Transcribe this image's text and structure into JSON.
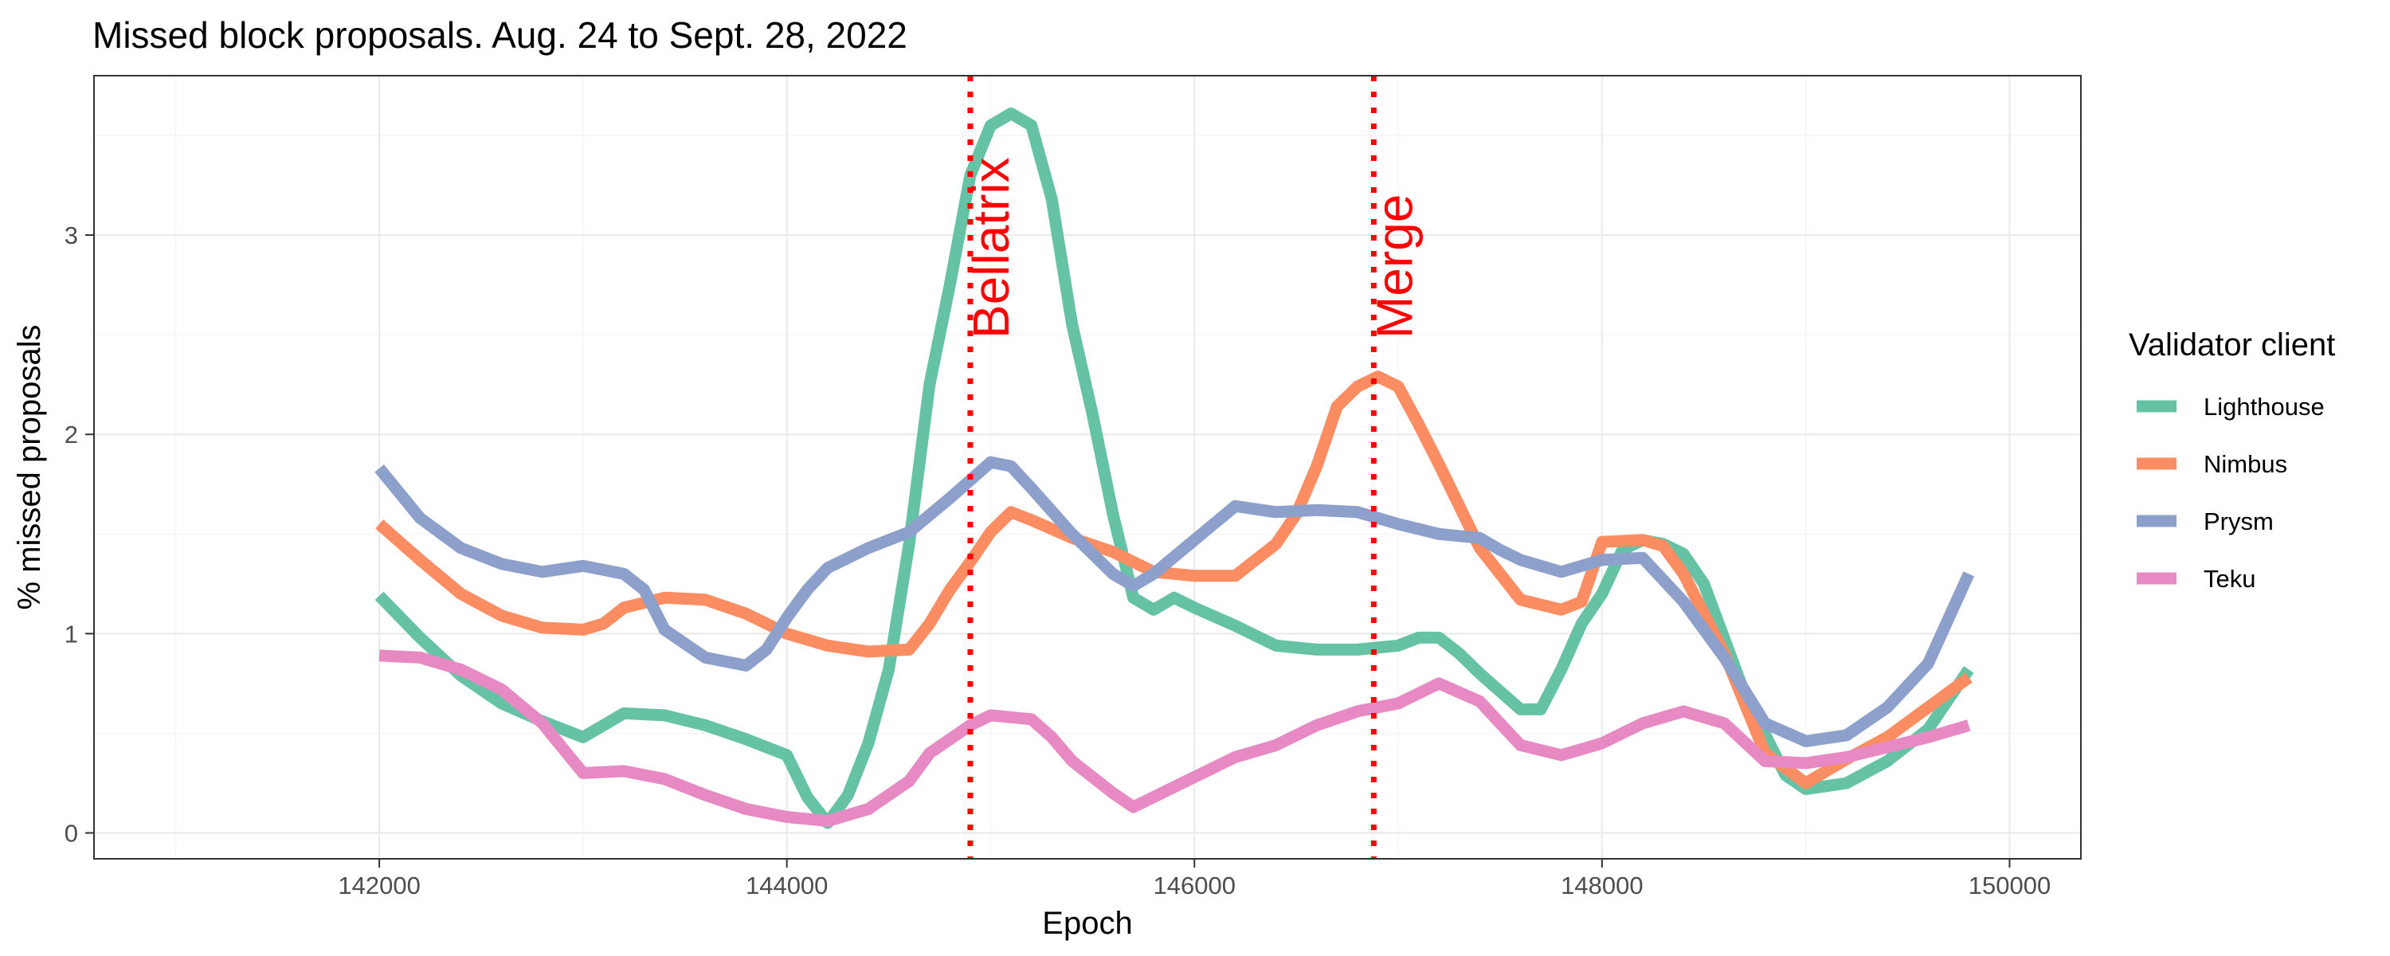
{
  "chart_data": {
    "type": "line",
    "title": "Missed block proposals. Aug. 24 to Sept. 28, 2022",
    "xlabel": "Epoch",
    "ylabel": "% missed proposals",
    "xlim": [
      140600,
      150350
    ],
    "ylim": [
      -0.13,
      3.8
    ],
    "x_ticks": [
      142000,
      144000,
      146000,
      148000,
      150000
    ],
    "y_ticks": [
      0,
      1,
      2,
      3
    ],
    "grid": true,
    "legend": {
      "title": "Validator client",
      "position": "right"
    },
    "vlines": [
      {
        "x": 144900,
        "label": "Bellatrix",
        "color": "#ff0000"
      },
      {
        "x": 146880,
        "label": "Merge",
        "color": "#ff0000"
      }
    ],
    "series": [
      {
        "name": "Lighthouse",
        "color": "#66c2a5",
        "points": [
          [
            142000,
            1.19
          ],
          [
            142200,
            0.98
          ],
          [
            142400,
            0.79
          ],
          [
            142600,
            0.65
          ],
          [
            142800,
            0.56
          ],
          [
            143000,
            0.48
          ],
          [
            143200,
            0.6
          ],
          [
            143400,
            0.59
          ],
          [
            143600,
            0.54
          ],
          [
            143800,
            0.47
          ],
          [
            144000,
            0.39
          ],
          [
            144100,
            0.18
          ],
          [
            144200,
            0.05
          ],
          [
            144300,
            0.19
          ],
          [
            144400,
            0.45
          ],
          [
            144500,
            0.82
          ],
          [
            144600,
            1.45
          ],
          [
            144700,
            2.25
          ],
          [
            144800,
            2.75
          ],
          [
            144900,
            3.3
          ],
          [
            145000,
            3.55
          ],
          [
            145100,
            3.61
          ],
          [
            145200,
            3.55
          ],
          [
            145300,
            3.18
          ],
          [
            145400,
            2.55
          ],
          [
            145500,
            2.1
          ],
          [
            145600,
            1.6
          ],
          [
            145700,
            1.18
          ],
          [
            145800,
            1.12
          ],
          [
            145900,
            1.18
          ],
          [
            146000,
            1.13
          ],
          [
            146200,
            1.04
          ],
          [
            146400,
            0.94
          ],
          [
            146600,
            0.92
          ],
          [
            146800,
            0.92
          ],
          [
            147000,
            0.94
          ],
          [
            147100,
            0.98
          ],
          [
            147200,
            0.98
          ],
          [
            147300,
            0.9
          ],
          [
            147400,
            0.8
          ],
          [
            147600,
            0.62
          ],
          [
            147700,
            0.62
          ],
          [
            147800,
            0.82
          ],
          [
            147900,
            1.05
          ],
          [
            148000,
            1.2
          ],
          [
            148100,
            1.42
          ],
          [
            148200,
            1.47
          ],
          [
            148300,
            1.45
          ],
          [
            148400,
            1.4
          ],
          [
            148500,
            1.25
          ],
          [
            148700,
            0.7
          ],
          [
            148900,
            0.29
          ],
          [
            149000,
            0.22
          ],
          [
            149200,
            0.25
          ],
          [
            149400,
            0.36
          ],
          [
            149600,
            0.52
          ],
          [
            149800,
            0.82
          ]
        ]
      },
      {
        "name": "Nimbus",
        "color": "#fc8d62",
        "points": [
          [
            142000,
            1.55
          ],
          [
            142200,
            1.37
          ],
          [
            142400,
            1.2
          ],
          [
            142600,
            1.09
          ],
          [
            142800,
            1.03
          ],
          [
            143000,
            1.02
          ],
          [
            143100,
            1.05
          ],
          [
            143200,
            1.13
          ],
          [
            143400,
            1.18
          ],
          [
            143600,
            1.17
          ],
          [
            143800,
            1.1
          ],
          [
            144000,
            1.0
          ],
          [
            144200,
            0.94
          ],
          [
            144400,
            0.91
          ],
          [
            144600,
            0.92
          ],
          [
            144700,
            1.05
          ],
          [
            144800,
            1.22
          ],
          [
            144900,
            1.36
          ],
          [
            145000,
            1.51
          ],
          [
            145100,
            1.61
          ],
          [
            145200,
            1.57
          ],
          [
            145400,
            1.48
          ],
          [
            145600,
            1.41
          ],
          [
            145800,
            1.31
          ],
          [
            146000,
            1.29
          ],
          [
            146200,
            1.29
          ],
          [
            146400,
            1.45
          ],
          [
            146500,
            1.6
          ],
          [
            146600,
            1.84
          ],
          [
            146700,
            2.14
          ],
          [
            146800,
            2.24
          ],
          [
            146900,
            2.29
          ],
          [
            147000,
            2.24
          ],
          [
            147100,
            2.05
          ],
          [
            147200,
            1.85
          ],
          [
            147400,
            1.43
          ],
          [
            147600,
            1.17
          ],
          [
            147800,
            1.12
          ],
          [
            147900,
            1.16
          ],
          [
            148000,
            1.46
          ],
          [
            148200,
            1.47
          ],
          [
            148300,
            1.44
          ],
          [
            148400,
            1.3
          ],
          [
            148600,
            0.9
          ],
          [
            148800,
            0.4
          ],
          [
            149000,
            0.25
          ],
          [
            149200,
            0.37
          ],
          [
            149400,
            0.48
          ],
          [
            149600,
            0.63
          ],
          [
            149800,
            0.78
          ]
        ]
      },
      {
        "name": "Prysm",
        "color": "#8da0cb",
        "points": [
          [
            142000,
            1.83
          ],
          [
            142200,
            1.58
          ],
          [
            142400,
            1.43
          ],
          [
            142600,
            1.35
          ],
          [
            142800,
            1.31
          ],
          [
            143000,
            1.34
          ],
          [
            143200,
            1.3
          ],
          [
            143300,
            1.22
          ],
          [
            143400,
            1.02
          ],
          [
            143600,
            0.88
          ],
          [
            143800,
            0.84
          ],
          [
            143900,
            0.92
          ],
          [
            144000,
            1.08
          ],
          [
            144100,
            1.22
          ],
          [
            144200,
            1.33
          ],
          [
            144400,
            1.43
          ],
          [
            144600,
            1.51
          ],
          [
            144800,
            1.68
          ],
          [
            145000,
            1.86
          ],
          [
            145100,
            1.84
          ],
          [
            145200,
            1.73
          ],
          [
            145400,
            1.5
          ],
          [
            145600,
            1.3
          ],
          [
            145700,
            1.24
          ],
          [
            145800,
            1.3
          ],
          [
            146000,
            1.47
          ],
          [
            146200,
            1.64
          ],
          [
            146400,
            1.61
          ],
          [
            146600,
            1.62
          ],
          [
            146800,
            1.61
          ],
          [
            147000,
            1.55
          ],
          [
            147200,
            1.5
          ],
          [
            147400,
            1.48
          ],
          [
            147500,
            1.42
          ],
          [
            147600,
            1.37
          ],
          [
            147800,
            1.31
          ],
          [
            148000,
            1.37
          ],
          [
            148200,
            1.38
          ],
          [
            148400,
            1.16
          ],
          [
            148600,
            0.88
          ],
          [
            148800,
            0.55
          ],
          [
            149000,
            0.46
          ],
          [
            149200,
            0.49
          ],
          [
            149400,
            0.63
          ],
          [
            149600,
            0.85
          ],
          [
            149800,
            1.3
          ]
        ]
      },
      {
        "name": "Teku",
        "color": "#e78ac3",
        "points": [
          [
            142000,
            0.89
          ],
          [
            142200,
            0.88
          ],
          [
            142400,
            0.82
          ],
          [
            142600,
            0.72
          ],
          [
            142800,
            0.55
          ],
          [
            143000,
            0.3
          ],
          [
            143200,
            0.31
          ],
          [
            143400,
            0.27
          ],
          [
            143600,
            0.19
          ],
          [
            143800,
            0.12
          ],
          [
            144000,
            0.08
          ],
          [
            144200,
            0.06
          ],
          [
            144400,
            0.12
          ],
          [
            144600,
            0.26
          ],
          [
            144700,
            0.4
          ],
          [
            144900,
            0.54
          ],
          [
            145000,
            0.59
          ],
          [
            145200,
            0.57
          ],
          [
            145300,
            0.48
          ],
          [
            145400,
            0.36
          ],
          [
            145600,
            0.2
          ],
          [
            145700,
            0.13
          ],
          [
            145800,
            0.18
          ],
          [
            146000,
            0.28
          ],
          [
            146200,
            0.38
          ],
          [
            146400,
            0.44
          ],
          [
            146600,
            0.54
          ],
          [
            146800,
            0.61
          ],
          [
            147000,
            0.65
          ],
          [
            147200,
            0.75
          ],
          [
            147400,
            0.66
          ],
          [
            147600,
            0.44
          ],
          [
            147800,
            0.39
          ],
          [
            148000,
            0.45
          ],
          [
            148200,
            0.55
          ],
          [
            148400,
            0.61
          ],
          [
            148600,
            0.55
          ],
          [
            148800,
            0.36
          ],
          [
            149000,
            0.35
          ],
          [
            149200,
            0.38
          ],
          [
            149400,
            0.43
          ],
          [
            149600,
            0.48
          ],
          [
            149800,
            0.54
          ]
        ]
      }
    ]
  }
}
